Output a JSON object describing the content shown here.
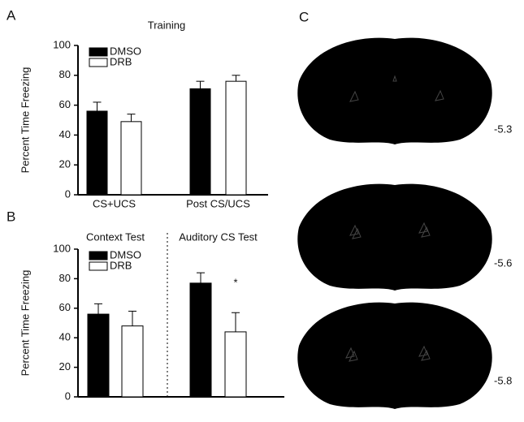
{
  "chart_data": [
    {
      "type": "bar",
      "panel": "A",
      "title": "Training",
      "y_label": "Percent Time Freezing",
      "categories": [
        "CS+UCS",
        "Post CS/UCS"
      ],
      "series": [
        {
          "name": "DMSO",
          "color": "#000000",
          "values": [
            56,
            71
          ],
          "errors": [
            6,
            5
          ]
        },
        {
          "name": "DRB",
          "color": "#ffffff",
          "values": [
            49,
            76
          ],
          "errors": [
            5,
            4
          ]
        }
      ],
      "ylim": [
        0,
        100
      ],
      "yticks": [
        0,
        20,
        40,
        60,
        80,
        100
      ],
      "legend": "upper-left"
    },
    {
      "type": "bar",
      "panel": "B",
      "y_label": "Percent Time Freezing",
      "categories": [
        "Context Test",
        "Auditory CS Test"
      ],
      "series": [
        {
          "name": "DMSO",
          "color": "#000000",
          "values": [
            56,
            77
          ],
          "errors": [
            7,
            7
          ]
        },
        {
          "name": "DRB",
          "color": "#ffffff",
          "values": [
            48,
            44
          ],
          "errors": [
            10,
            13
          ]
        }
      ],
      "ylim": [
        0,
        100
      ],
      "yticks": [
        0,
        20,
        40,
        60,
        80,
        100
      ],
      "legend": "upper-left",
      "annotations": [
        "*"
      ]
    }
  ],
  "atlas": {
    "panel": "C",
    "sections": [
      "-5.3",
      "-5.6",
      "-5.8"
    ]
  }
}
